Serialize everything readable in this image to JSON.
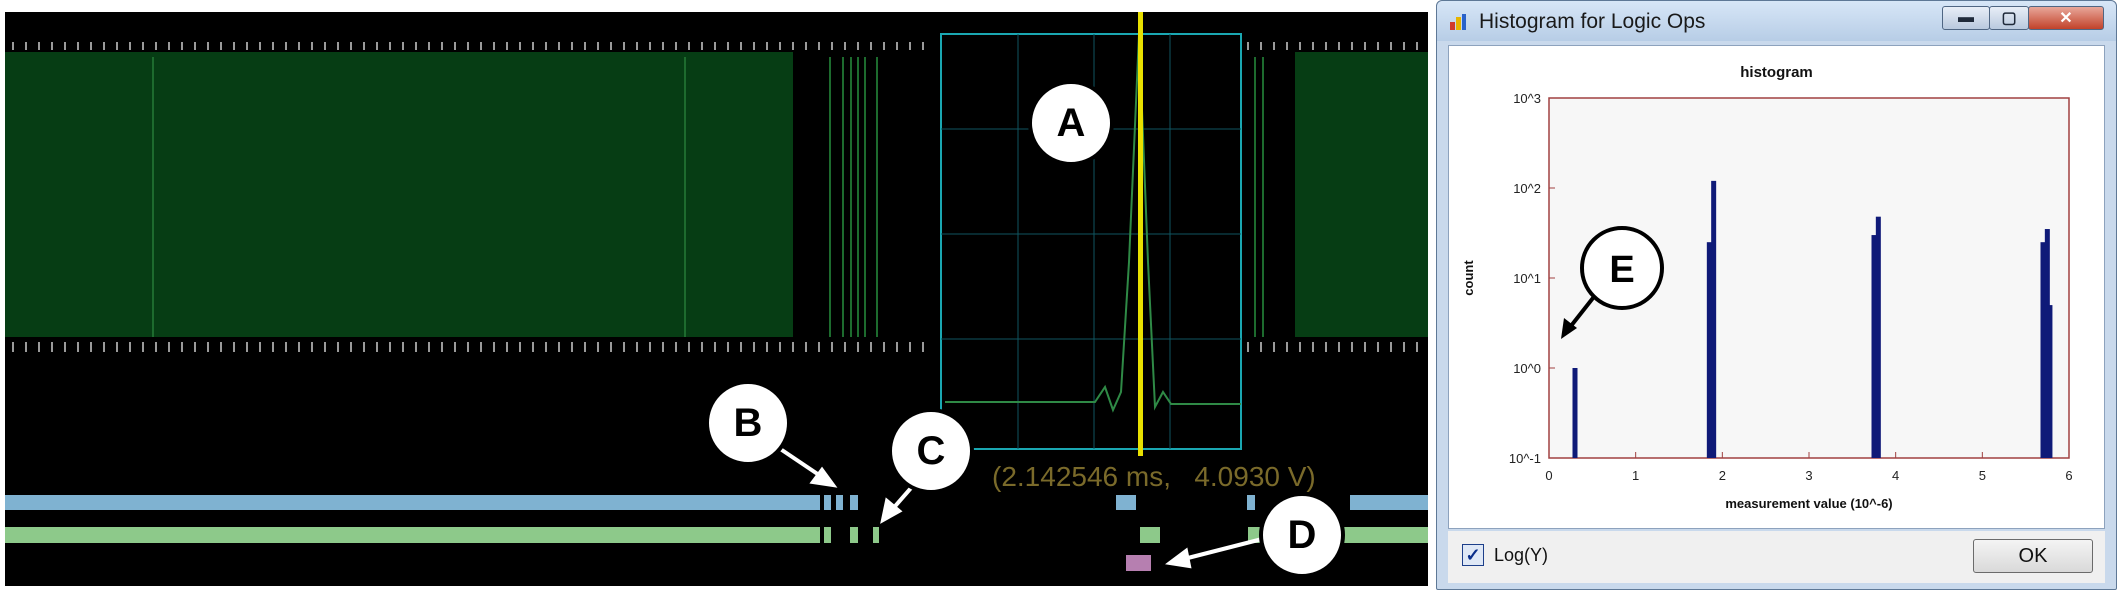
{
  "scope": {
    "readout": "(2.142546 ms,   4.0930 V)",
    "colors": {
      "background": "#000000",
      "trace_fill": "#063d14",
      "trace_line": "#1d6b2e",
      "cursor": "#e8e000",
      "zoom_box": "#1aa7b2",
      "lane_blue": "#7fb2d1",
      "lane_green": "#8dc98a",
      "lane_purple": "#b67fb0"
    },
    "callouts": [
      "A",
      "B",
      "C",
      "D"
    ]
  },
  "dialog": {
    "title": "Histogram for Logic Ops",
    "buttons": {
      "minimize": "▬",
      "maximize": "▢",
      "close": "✕"
    },
    "log_checkbox": {
      "label": "Log(Y)",
      "checked": true
    },
    "ok_label": "OK",
    "callout": "E"
  },
  "chart_data": {
    "type": "bar",
    "title": "histogram",
    "xlabel": "measurement value (10^-6)",
    "ylabel": "count",
    "xlim": [
      0,
      6
    ],
    "ylim": [
      0.1,
      1000
    ],
    "y_scale": "log",
    "x_ticks": [
      "0",
      "1",
      "2",
      "3",
      "4",
      "5",
      "6"
    ],
    "y_ticks": [
      "10^-1",
      "10^0",
      "10^1",
      "10^2",
      "10^3"
    ],
    "bar_color": "#0f1a78",
    "grid": false,
    "points": [
      {
        "x": 0.3,
        "y": 1
      },
      {
        "x": 1.85,
        "y": 25
      },
      {
        "x": 1.9,
        "y": 120
      },
      {
        "x": 3.75,
        "y": 30
      },
      {
        "x": 3.8,
        "y": 48
      },
      {
        "x": 5.7,
        "y": 25
      },
      {
        "x": 5.75,
        "y": 35
      },
      {
        "x": 5.78,
        "y": 5
      }
    ]
  }
}
